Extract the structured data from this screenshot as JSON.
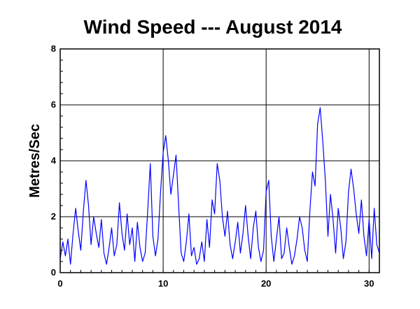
{
  "chart_data": {
    "type": "line",
    "title": "Wind Speed --- August 2014",
    "xlabel": "",
    "ylabel": "Metres/Sec",
    "xlim": [
      0,
      31
    ],
    "ylim": [
      0,
      8
    ],
    "x_ticks": [
      0,
      10,
      20,
      30
    ],
    "x_tick_labels": [
      "0",
      "10",
      "20",
      "30"
    ],
    "y_ticks": [
      0,
      2,
      4,
      6,
      8
    ],
    "y_tick_labels": [
      "0",
      "2",
      "4",
      "6",
      "8"
    ],
    "grid": true,
    "legend": "none",
    "series": [
      {
        "name": "",
        "color": "#0000ff",
        "x": [
          0.0,
          0.25,
          0.5,
          0.75,
          1.0,
          1.25,
          1.5,
          1.75,
          2.0,
          2.25,
          2.5,
          2.75,
          3.0,
          3.25,
          3.5,
          3.75,
          4.0,
          4.25,
          4.5,
          4.75,
          5.0,
          5.25,
          5.5,
          5.75,
          6.0,
          6.25,
          6.5,
          6.75,
          7.0,
          7.25,
          7.5,
          7.75,
          8.0,
          8.25,
          8.5,
          8.75,
          9.0,
          9.25,
          9.5,
          9.75,
          10.0,
          10.25,
          10.5,
          10.75,
          11.0,
          11.25,
          11.5,
          11.75,
          12.0,
          12.25,
          12.5,
          12.75,
          13.0,
          13.25,
          13.5,
          13.75,
          14.0,
          14.25,
          14.5,
          14.75,
          15.0,
          15.25,
          15.5,
          15.75,
          16.0,
          16.25,
          16.5,
          16.75,
          17.0,
          17.25,
          17.5,
          17.75,
          18.0,
          18.25,
          18.5,
          18.75,
          19.0,
          19.25,
          19.5,
          19.75,
          20.0,
          20.25,
          20.5,
          20.75,
          21.0,
          21.25,
          21.5,
          21.75,
          22.0,
          22.25,
          22.5,
          22.75,
          23.0,
          23.25,
          23.5,
          23.75,
          24.0,
          24.25,
          24.5,
          24.75,
          25.0,
          25.25,
          25.5,
          25.75,
          26.0,
          26.25,
          26.5,
          26.75,
          27.0,
          27.25,
          27.5,
          27.75,
          28.0,
          28.25,
          28.5,
          28.75,
          29.0,
          29.25,
          29.5,
          29.75,
          30.0,
          30.25,
          30.5,
          30.75,
          31.0
        ],
        "values": [
          0.5,
          1.1,
          0.6,
          1.2,
          0.3,
          1.4,
          2.3,
          1.5,
          0.8,
          2.2,
          3.3,
          2.4,
          1.0,
          2.0,
          1.4,
          0.9,
          1.9,
          0.7,
          0.3,
          0.9,
          1.6,
          0.6,
          1.0,
          2.5,
          1.4,
          0.8,
          2.1,
          1.0,
          1.6,
          0.4,
          1.8,
          0.9,
          0.4,
          0.7,
          2.2,
          3.9,
          1.3,
          0.6,
          1.2,
          2.9,
          4.3,
          4.9,
          4.0,
          2.8,
          3.5,
          4.2,
          2.4,
          0.7,
          0.4,
          1.1,
          2.1,
          0.6,
          0.9,
          0.3,
          0.5,
          1.1,
          0.4,
          1.9,
          0.9,
          2.6,
          2.1,
          3.9,
          3.3,
          2.0,
          1.3,
          2.2,
          1.0,
          0.5,
          1.1,
          1.8,
          0.7,
          1.4,
          2.4,
          1.3,
          0.5,
          1.6,
          2.2,
          0.9,
          0.4,
          0.8,
          2.9,
          3.3,
          1.3,
          0.4,
          1.2,
          2.0,
          0.5,
          0.7,
          1.6,
          0.9,
          0.3,
          0.6,
          1.2,
          2.0,
          1.6,
          0.8,
          0.4,
          2.2,
          3.6,
          3.1,
          5.3,
          5.9,
          4.7,
          3.3,
          1.3,
          2.8,
          1.9,
          0.7,
          2.3,
          1.6,
          0.5,
          1.1,
          2.9,
          3.7,
          3.0,
          2.1,
          1.4,
          2.6,
          1.3,
          0.6,
          1.9,
          0.5,
          2.3,
          1.0,
          0.7
        ]
      }
    ]
  }
}
